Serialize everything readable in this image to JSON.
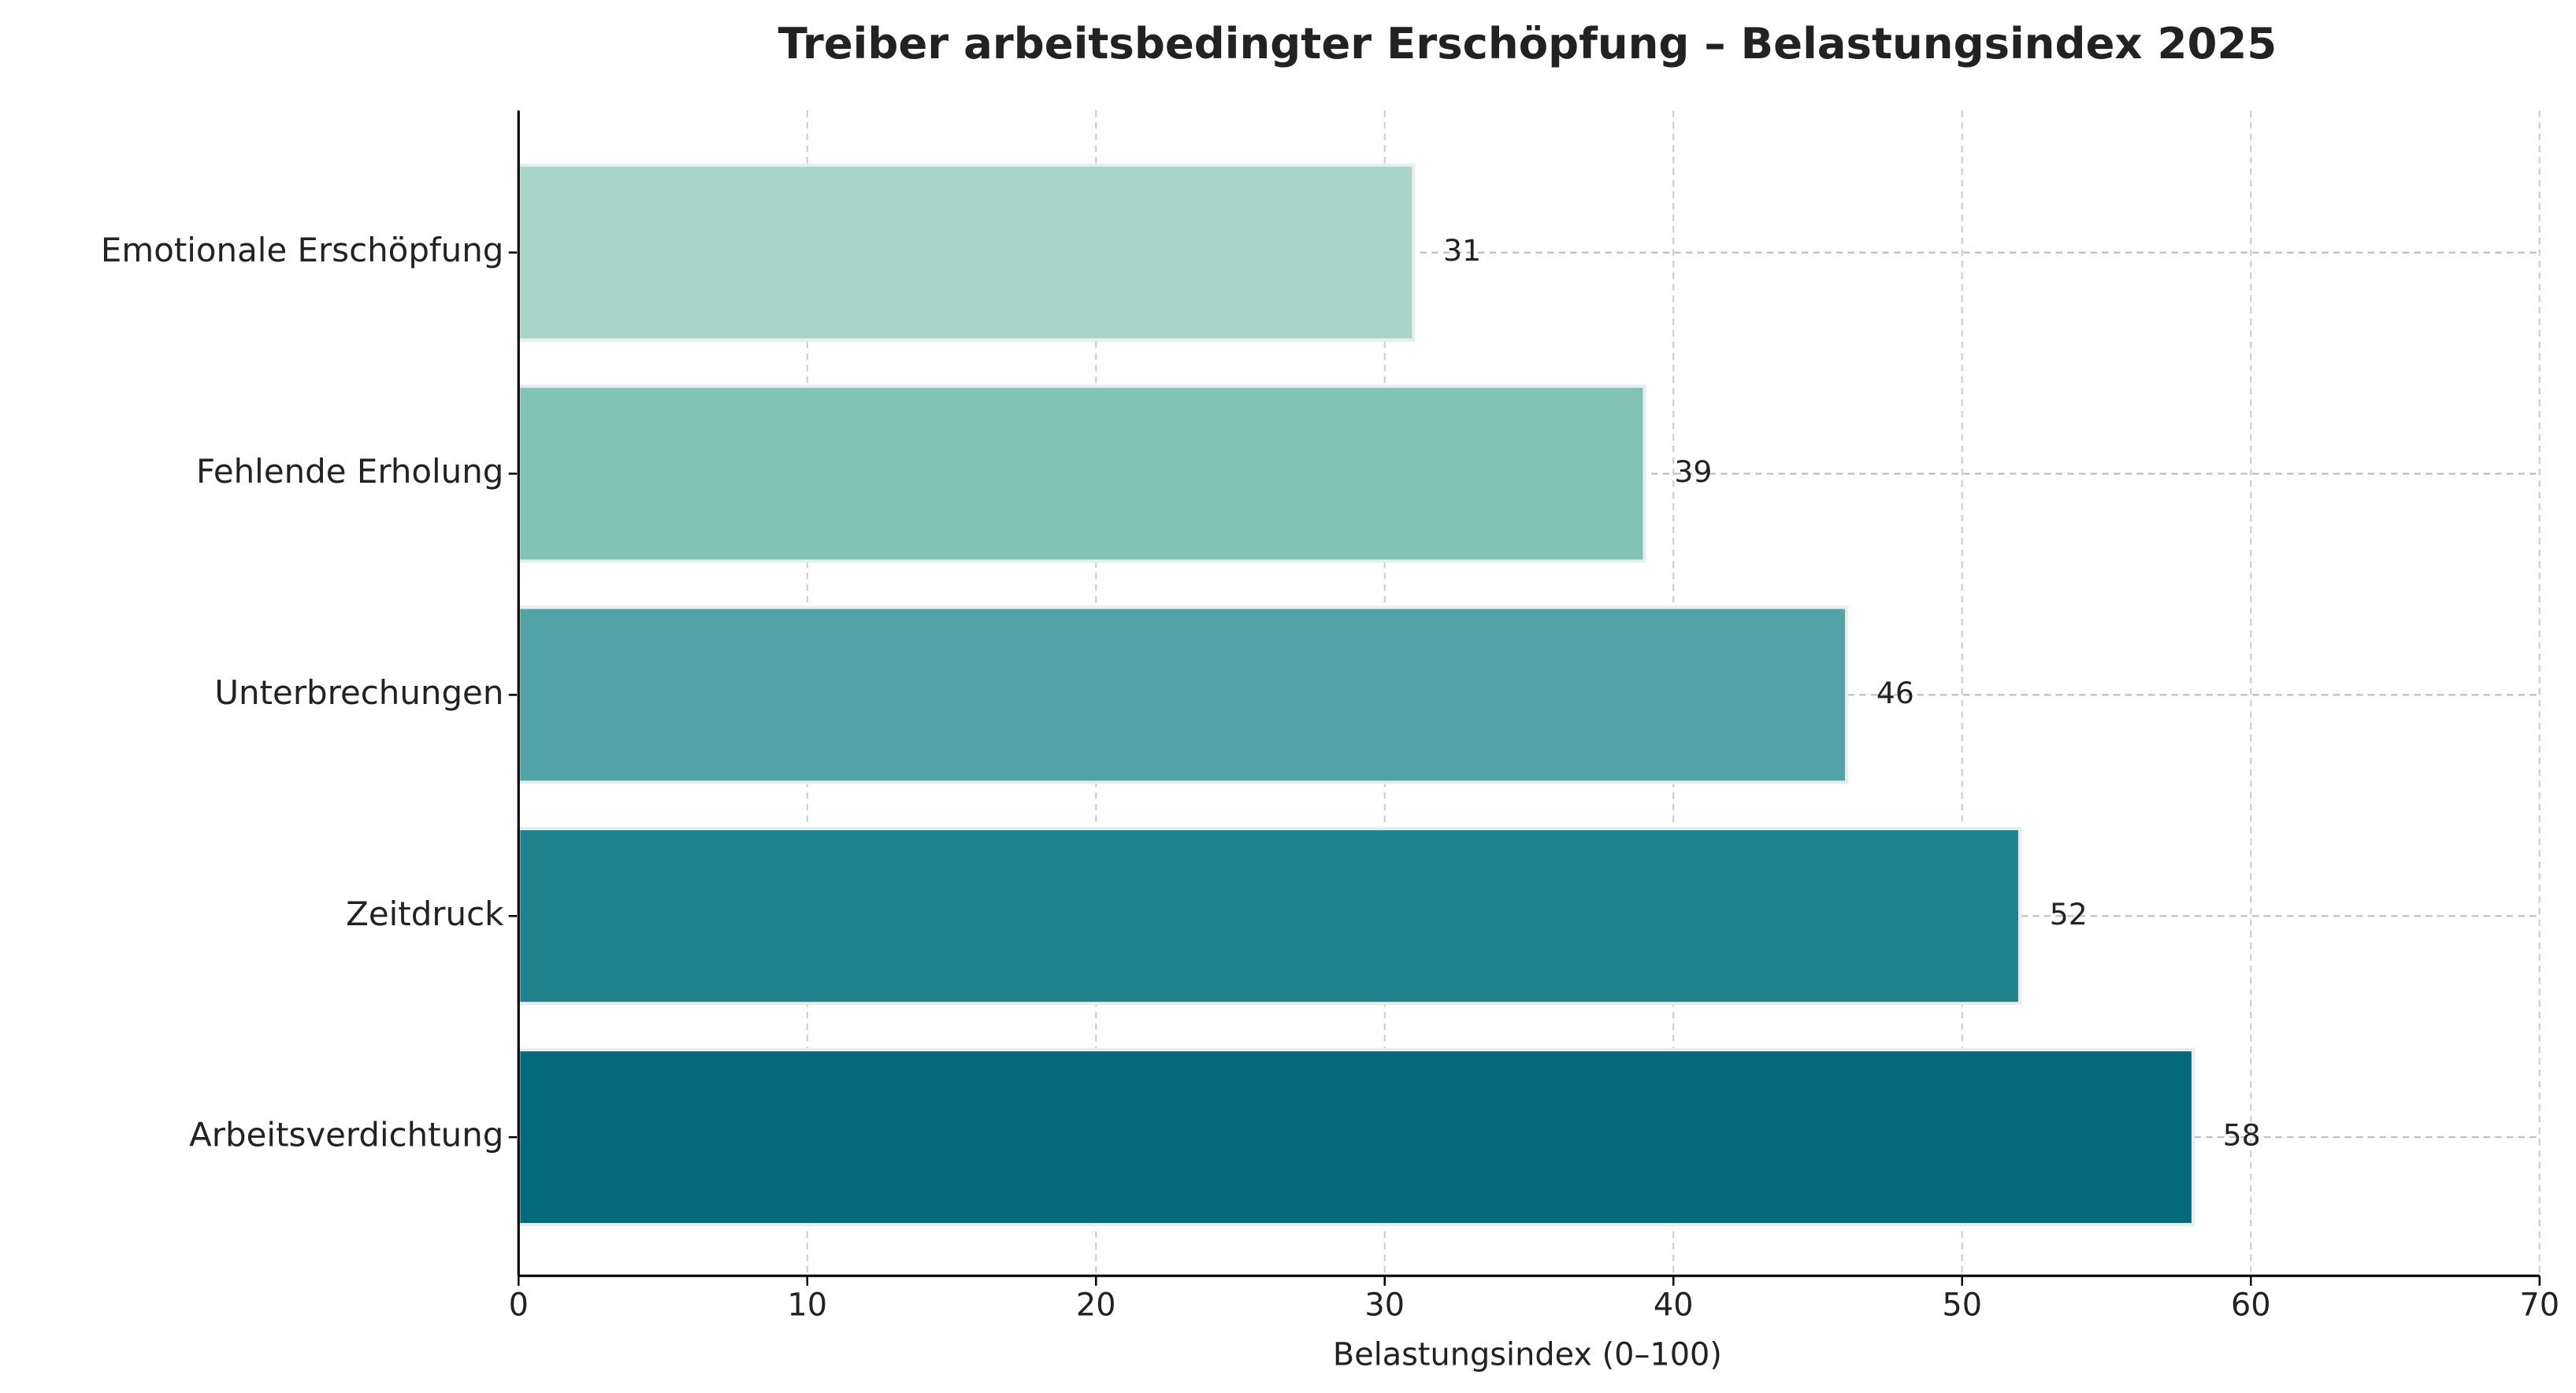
{
  "chart_data": {
    "type": "barh",
    "title": "Treiber arbeitsbedingter Erschöpfung – Belastungsindex 2025",
    "x_label": "Belastungsindex (0–100)",
    "categories": [
      "Emotionale Erschöpfung",
      "Fehlende Erholung",
      "Unterbrechungen",
      "Zeitdruck",
      "Arbeitsverdichtung"
    ],
    "values": [
      31,
      39,
      46,
      52,
      58
    ],
    "colors": [
      "#a8d5c8",
      "#82c3b5",
      "#52a3a5",
      "#1f828c",
      "#026a78"
    ],
    "xlim": [
      0,
      70
    ],
    "xticks": [
      0,
      10,
      20,
      30,
      40,
      50,
      60,
      70
    ],
    "grid": true
  }
}
